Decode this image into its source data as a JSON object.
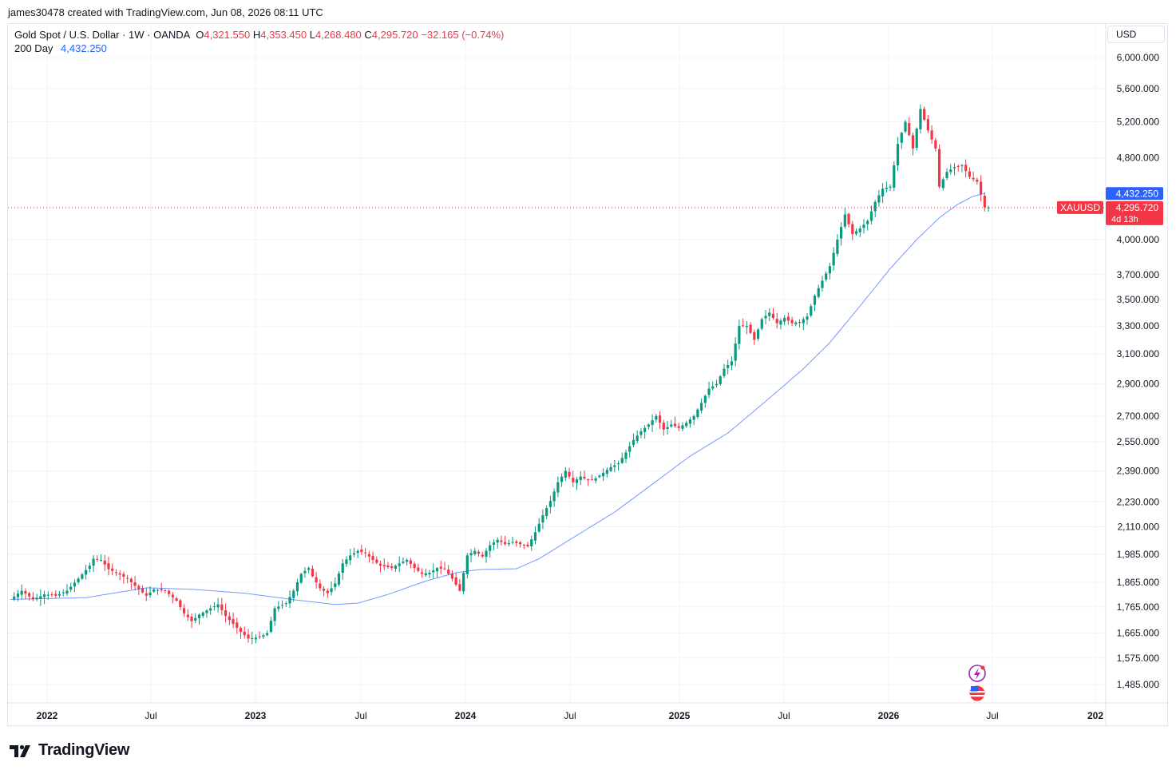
{
  "header": {
    "attribution": "james30478 created with TradingView.com, Jun 08, 2026 08:11 UTC"
  },
  "legend": {
    "symbol_desc": "Gold Spot / U.S. Dollar · 1W · OANDA",
    "open_label": "O",
    "open": "4,321.550",
    "high_label": "H",
    "high": "4,353.450",
    "low_label": "L",
    "low": "4,268.480",
    "close_label": "C",
    "close": "4,295.720",
    "change": "−32.165 (−0.74%)",
    "ma_label": "200 Day",
    "ma_value": "4,432.250"
  },
  "currency": "USD",
  "badges": {
    "ma_price": "4,432.250",
    "symbol": "XAUUSD",
    "last_price": "4,295.720",
    "countdown": "4d 13h"
  },
  "footer": {
    "brand": "TradingView"
  },
  "icons": [
    "lightning-event-icon",
    "us-flag-icon",
    "tradingview-logo-icon"
  ],
  "colors": {
    "up": "#089981",
    "down": "#f23645",
    "ma": "#2962ff",
    "grid": "#f0f3fa"
  },
  "chart_data": {
    "type": "candlestick",
    "title": "Gold Spot / U.S. Dollar · 1W · OANDA",
    "y_scale": "log",
    "ylim": [
      1420,
      6250
    ],
    "y_ticks": [
      "1,485.000",
      "1,575.000",
      "1,665.000",
      "1,765.000",
      "1,865.000",
      "1,985.000",
      "2,110.000",
      "2,230.000",
      "2,390.000",
      "2,550.000",
      "2,700.000",
      "2,900.000",
      "3,100.000",
      "3,300.000",
      "3,500.000",
      "3,700.000",
      "4,000.000",
      "4,800.000",
      "5,200.000",
      "5,600.000",
      "6,000.000"
    ],
    "x_ticks": [
      {
        "label": "2022",
        "bold": true
      },
      {
        "label": "Jul",
        "bold": false
      },
      {
        "label": "2023",
        "bold": true
      },
      {
        "label": "Jul",
        "bold": false
      },
      {
        "label": "2024",
        "bold": true
      },
      {
        "label": "Jul",
        "bold": false
      },
      {
        "label": "2025",
        "bold": true
      },
      {
        "label": "Jul",
        "bold": false
      },
      {
        "label": "2026",
        "bold": true
      },
      {
        "label": "Jul",
        "bold": false
      },
      {
        "label": "202",
        "bold": true
      }
    ],
    "weekly_close_path": [
      [
        0,
        1795
      ],
      [
        3,
        1830
      ],
      [
        6,
        1795
      ],
      [
        9,
        1815
      ],
      [
        12,
        1810
      ],
      [
        15,
        1830
      ],
      [
        18,
        1880
      ],
      [
        21,
        1935
      ],
      [
        22,
        1965
      ],
      [
        24,
        1960
      ],
      [
        26,
        1920
      ],
      [
        28,
        1905
      ],
      [
        31,
        1880
      ],
      [
        33,
        1850
      ],
      [
        36,
        1810
      ],
      [
        38,
        1835
      ],
      [
        41,
        1830
      ],
      [
        44,
        1790
      ],
      [
        46,
        1740
      ],
      [
        48,
        1710
      ],
      [
        50,
        1735
      ],
      [
        53,
        1760
      ],
      [
        55,
        1775
      ],
      [
        57,
        1730
      ],
      [
        59,
        1700
      ],
      [
        61,
        1670
      ],
      [
        63,
        1645
      ],
      [
        66,
        1650
      ],
      [
        68,
        1665
      ],
      [
        70,
        1760
      ],
      [
        73,
        1780
      ],
      [
        75,
        1830
      ],
      [
        77,
        1900
      ],
      [
        79,
        1925
      ],
      [
        80,
        1890
      ],
      [
        82,
        1840
      ],
      [
        84,
        1820
      ],
      [
        86,
        1860
      ],
      [
        88,
        1945
      ],
      [
        90,
        1980
      ],
      [
        92,
        2000
      ],
      [
        94,
        1990
      ],
      [
        96,
        1960
      ],
      [
        98,
        1935
      ],
      [
        101,
        1925
      ],
      [
        103,
        1945
      ],
      [
        105,
        1960
      ],
      [
        107,
        1925
      ],
      [
        109,
        1900
      ],
      [
        111,
        1905
      ],
      [
        113,
        1925
      ],
      [
        115,
        1920
      ],
      [
        117,
        1880
      ],
      [
        119,
        1830
      ],
      [
        121,
        1980
      ],
      [
        123,
        2000
      ],
      [
        125,
        1975
      ],
      [
        127,
        2025
      ],
      [
        129,
        2050
      ],
      [
        131,
        2030
      ],
      [
        133,
        2040
      ],
      [
        135,
        2030
      ],
      [
        137,
        2020
      ],
      [
        139,
        2085
      ],
      [
        141,
        2165
      ],
      [
        143,
        2235
      ],
      [
        145,
        2330
      ],
      [
        147,
        2390
      ],
      [
        149,
        2330
      ],
      [
        151,
        2360
      ],
      [
        153,
        2340
      ],
      [
        155,
        2350
      ],
      [
        157,
        2380
      ],
      [
        159,
        2410
      ],
      [
        161,
        2430
      ],
      [
        163,
        2490
      ],
      [
        165,
        2560
      ],
      [
        167,
        2610
      ],
      [
        169,
        2650
      ],
      [
        171,
        2700
      ],
      [
        173,
        2620
      ],
      [
        175,
        2650
      ],
      [
        177,
        2630
      ],
      [
        179,
        2660
      ],
      [
        181,
        2700
      ],
      [
        183,
        2780
      ],
      [
        185,
        2870
      ],
      [
        187,
        2900
      ],
      [
        189,
        3000
      ],
      [
        191,
        3050
      ],
      [
        193,
        3300
      ],
      [
        195,
        3300
      ],
      [
        197,
        3200
      ],
      [
        199,
        3350
      ],
      [
        201,
        3400
      ],
      [
        203,
        3320
      ],
      [
        205,
        3360
      ],
      [
        207,
        3320
      ],
      [
        209,
        3330
      ],
      [
        211,
        3370
      ],
      [
        213,
        3530
      ],
      [
        215,
        3650
      ],
      [
        217,
        3770
      ],
      [
        219,
        4000
      ],
      [
        221,
        4230
      ],
      [
        223,
        4050
      ],
      [
        225,
        4100
      ],
      [
        227,
        4170
      ],
      [
        229,
        4350
      ],
      [
        231,
        4480
      ],
      [
        233,
        4500
      ],
      [
        235,
        4950
      ],
      [
        237,
        5200
      ],
      [
        239,
        4900
      ],
      [
        241,
        5350
      ],
      [
        243,
        5100
      ],
      [
        245,
        4900
      ],
      [
        246,
        4500
      ],
      [
        248,
        4650
      ],
      [
        250,
        4700
      ],
      [
        252,
        4720
      ],
      [
        254,
        4600
      ],
      [
        256,
        4550
      ],
      [
        258,
        4300
      ],
      [
        259,
        4296
      ]
    ],
    "ma_200_path": [
      [
        0,
        1795
      ],
      [
        20,
        1802
      ],
      [
        36,
        1842
      ],
      [
        48,
        1836
      ],
      [
        62,
        1820
      ],
      [
        76,
        1792
      ],
      [
        86,
        1775
      ],
      [
        92,
        1780
      ],
      [
        100,
        1815
      ],
      [
        110,
        1870
      ],
      [
        118,
        1905
      ],
      [
        124,
        1918
      ],
      [
        134,
        1922
      ],
      [
        140,
        1965
      ],
      [
        150,
        2070
      ],
      [
        160,
        2180
      ],
      [
        170,
        2320
      ],
      [
        180,
        2470
      ],
      [
        190,
        2600
      ],
      [
        200,
        2790
      ],
      [
        210,
        3000
      ],
      [
        217,
        3180
      ],
      [
        225,
        3450
      ],
      [
        233,
        3750
      ],
      [
        240,
        4000
      ],
      [
        246,
        4200
      ],
      [
        251,
        4330
      ],
      [
        255,
        4405
      ],
      [
        258,
        4432
      ]
    ],
    "last_price": 4295.72,
    "ma_last": 4432.25,
    "legend": "top-left"
  }
}
